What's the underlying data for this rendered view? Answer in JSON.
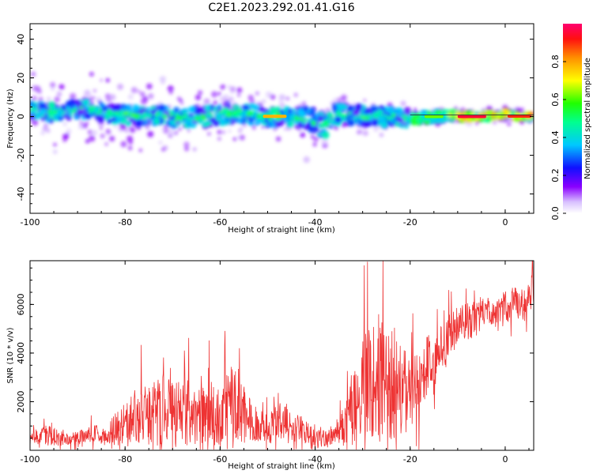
{
  "title": "C2E1.2023.292.01.41.G16",
  "chart_data": [
    {
      "type": "heatmap",
      "xlabel": "Height of straight line (km)",
      "ylabel": "Frequency (Hz)",
      "xlim": [
        -100,
        6
      ],
      "ylim": [
        -50,
        48
      ],
      "xticks": [
        -100,
        -80,
        -60,
        -40,
        -20,
        0
      ],
      "yticks": [
        -40,
        -20,
        0,
        20,
        40
      ],
      "colorbar": {
        "label": "Normalized spectral amplitude",
        "range": [
          0,
          1
        ],
        "ticks": [
          "0.0",
          "0.2",
          "0.4",
          "0.6",
          "0.8"
        ]
      },
      "ridge": {
        "x": [
          -100,
          -96,
          -92,
          -88,
          -84,
          -80,
          -76,
          -72,
          -68,
          -64,
          -60,
          -56,
          -52,
          -48,
          -44,
          -40,
          -38,
          -36,
          -32,
          -28,
          -24,
          -20,
          -16,
          -12,
          -8,
          -4,
          0,
          4,
          6
        ],
        "y": [
          3,
          2,
          3,
          4,
          2,
          1,
          0,
          1,
          -1,
          0,
          1,
          2,
          1,
          0,
          0,
          -3,
          -5,
          1,
          1,
          0,
          0,
          -1,
          0,
          0,
          0,
          0,
          1,
          0,
          0
        ]
      }
    },
    {
      "type": "line",
      "xlabel": "Height of straight line (km)",
      "ylabel": "SNR (10 * v/v)",
      "xlim": [
        -100,
        6
      ],
      "ylim": [
        0,
        7800
      ],
      "xticks": [
        -100,
        -80,
        -60,
        -40,
        -20,
        0
      ],
      "yticks": [
        2000,
        4000,
        6000
      ],
      "series": [
        {
          "color": "#ee3333",
          "x": [
            -100,
            -98,
            -96,
            -94,
            -92,
            -90,
            -88,
            -86,
            -84,
            -82,
            -80,
            -78,
            -76,
            -74,
            -72,
            -70,
            -68,
            -66,
            -64,
            -62,
            -60,
            -58,
            -56,
            -54,
            -52,
            -50,
            -48,
            -46,
            -44,
            -42,
            -40,
            -38,
            -36,
            -34,
            -32,
            -30,
            -28,
            -26,
            -24,
            -22,
            -20,
            -18,
            -16,
            -14,
            -12,
            -10,
            -8,
            -6,
            -4,
            -2,
            0,
            2,
            4,
            6
          ],
          "values": [
            300,
            700,
            600,
            550,
            500,
            480,
            600,
            650,
            550,
            900,
            1100,
            1400,
            1500,
            1500,
            1600,
            1700,
            1500,
            1600,
            1400,
            1500,
            1500,
            1700,
            1800,
            1300,
            1100,
            1000,
            1100,
            1050,
            950,
            700,
            500,
            450,
            600,
            1000,
            1800,
            2400,
            2900,
            3000,
            2800,
            2600,
            2100,
            3000,
            3600,
            3900,
            4700,
            5100,
            5300,
            5400,
            5700,
            5400,
            5900,
            6100,
            6000,
            6700
          ],
          "spread": [
            350,
            550,
            500,
            450,
            400,
            380,
            450,
            500,
            450,
            900,
            1200,
            1400,
            1600,
            1700,
            1800,
            1900,
            1700,
            1800,
            1500,
            1700,
            1600,
            2200,
            2000,
            1200,
            1000,
            900,
            1000,
            950,
            900,
            650,
            450,
            450,
            550,
            1100,
            2000,
            2600,
            3200,
            3400,
            3000,
            2700,
            1800,
            1700,
            1500,
            1400,
            1100,
            1000,
            1000,
            900,
            800,
            800,
            900,
            800,
            900,
            900
          ]
        }
      ]
    }
  ]
}
